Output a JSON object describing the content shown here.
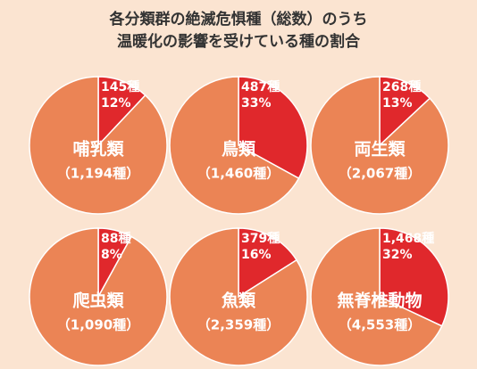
{
  "title_lines": [
    "各分類群の絶滅危惧種（総数）のうち",
    "温暖化の影響を受けている種の割合"
  ],
  "chart_data": [
    {
      "type": "pie",
      "title": "哺乳類",
      "subtitle": "（1,194種）",
      "values": [
        12,
        88
      ],
      "value_labels": [
        "12%",
        null
      ],
      "count_labels": [
        "145種",
        null
      ],
      "colors": [
        "#e0282c",
        "#eb8455"
      ]
    },
    {
      "type": "pie",
      "title": "鳥類",
      "subtitle": "（1,460種）",
      "values": [
        33,
        67
      ],
      "value_labels": [
        "33%",
        null
      ],
      "count_labels": [
        "487種",
        null
      ],
      "colors": [
        "#e0282c",
        "#eb8455"
      ]
    },
    {
      "type": "pie",
      "title": "両生類",
      "subtitle": "（2,067種）",
      "values": [
        13,
        87
      ],
      "value_labels": [
        "13%",
        null
      ],
      "count_labels": [
        "268種",
        null
      ],
      "colors": [
        "#e0282c",
        "#eb8455"
      ]
    },
    {
      "type": "pie",
      "title": "爬虫類",
      "subtitle": "（1,090種）",
      "values": [
        8,
        92
      ],
      "value_labels": [
        "8%",
        null
      ],
      "count_labels": [
        "88種",
        null
      ],
      "colors": [
        "#e0282c",
        "#eb8455"
      ]
    },
    {
      "type": "pie",
      "title": "魚類",
      "subtitle": "（2,359種）",
      "values": [
        16,
        84
      ],
      "value_labels": [
        "16%",
        null
      ],
      "count_labels": [
        "379種",
        null
      ],
      "colors": [
        "#e0282c",
        "#eb8455"
      ]
    },
    {
      "type": "pie",
      "title": "無脊椎動物",
      "subtitle": "（4,553種）",
      "values": [
        32,
        68
      ],
      "value_labels": [
        "32%",
        null
      ],
      "count_labels": [
        "1,468種",
        null
      ],
      "colors": [
        "#e0282c",
        "#eb8455"
      ]
    }
  ]
}
